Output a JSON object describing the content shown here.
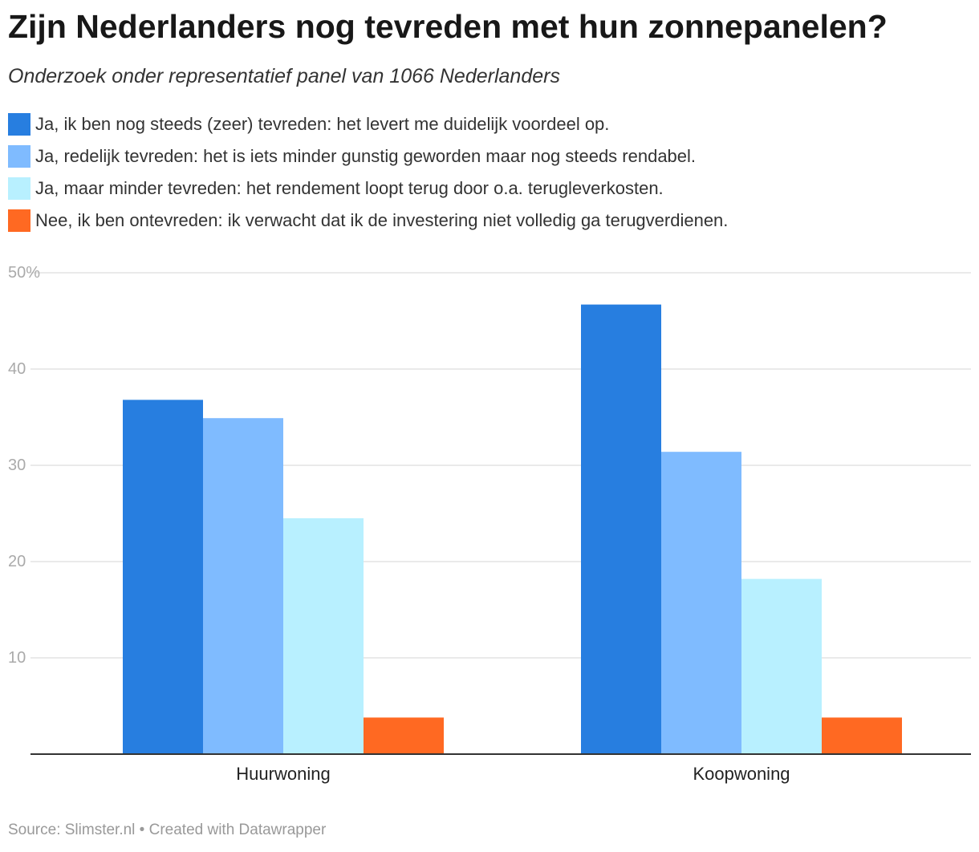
{
  "header": {
    "title": "Zijn Nederlanders nog tevreden met hun zonnepanelen?",
    "subtitle": "Onderzoek onder representatief panel van 1066 Nederlanders"
  },
  "footer": {
    "source": "Source: Slimster.nl • Created with Datawrapper"
  },
  "chart_data": {
    "type": "bar",
    "categories": [
      "Huurwoning",
      "Koopwoning"
    ],
    "series": [
      {
        "name": "Ja, ik ben nog steeds (zeer) tevreden: het levert me duidelijk voordeel op.",
        "color": "#277ee0",
        "values": [
          36.8,
          46.7
        ]
      },
      {
        "name": "Ja, redelijk tevreden: het is iets minder gunstig geworden maar nog steeds rendabel.",
        "color": "#7fbbff",
        "values": [
          34.9,
          31.4
        ]
      },
      {
        "name": "Ja, maar minder tevreden: het rendement loopt terug door o.a. terugleverkosten.",
        "color": "#b8f0ff",
        "values": [
          24.5,
          18.2
        ]
      },
      {
        "name": "Nee, ik ben ontevreden: ik verwacht dat ik de investering niet volledig ga terugverdienen.",
        "color": "#ff6922",
        "values": [
          3.8,
          3.8
        ]
      }
    ],
    "ylim": [
      0,
      50
    ],
    "yticks": [
      10,
      20,
      30,
      40,
      50
    ],
    "ytick_labels": [
      "10",
      "20",
      "30",
      "40",
      "50%"
    ],
    "grid": true,
    "legend_position": "top-left"
  }
}
